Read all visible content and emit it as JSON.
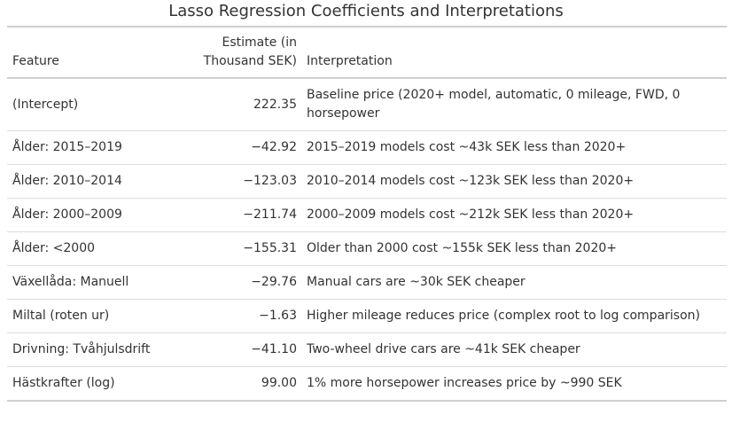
{
  "title": "Lasso Regression Coefficients and Interpretations",
  "columns": {
    "feature": "Feature",
    "estimate": "Estimate (in Thousand SEK)",
    "interpretation": "Interpretation"
  },
  "rows": [
    {
      "feature": "(Intercept)",
      "estimate": "222.35",
      "interpretation": "Baseline price (2020+ model, automatic, 0 mileage, FWD, 0 horsepower"
    },
    {
      "feature": "Ålder: 2015–2019",
      "estimate": "−42.92",
      "interpretation": "2015–2019 models cost ~43k SEK less than 2020+"
    },
    {
      "feature": "Ålder: 2010–2014",
      "estimate": "−123.03",
      "interpretation": "2010–2014 models cost ~123k SEK less than 2020+"
    },
    {
      "feature": "Ålder: 2000–2009",
      "estimate": "−211.74",
      "interpretation": "2000–2009 models cost ~212k SEK less than 2020+"
    },
    {
      "feature": "Ålder: <2000",
      "estimate": "−155.31",
      "interpretation": "Older than 2000 cost ~155k SEK less than 2020+"
    },
    {
      "feature": "Växellåda: Manuell",
      "estimate": "−29.76",
      "interpretation": "Manual cars are ~30k SEK cheaper"
    },
    {
      "feature": "Miltal (roten ur)",
      "estimate": "−1.63",
      "interpretation": "Higher mileage reduces price (complex root to log comparison)"
    },
    {
      "feature": "Drivning: Tvåhjulsdrift",
      "estimate": "−41.10",
      "interpretation": "Two-wheel drive cars are ~41k SEK cheaper"
    },
    {
      "feature": "Hästkrafter (log)",
      "estimate": "99.00",
      "interpretation": "1% more horsepower increases price by ~990 SEK"
    }
  ]
}
